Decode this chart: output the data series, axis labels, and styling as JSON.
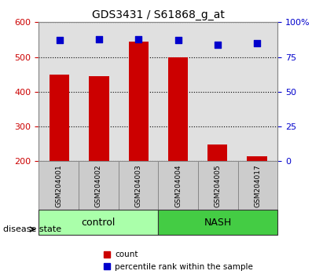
{
  "title": "GDS3431 / S61868_g_at",
  "samples": [
    "GSM204001",
    "GSM204002",
    "GSM204003",
    "GSM204004",
    "GSM204005",
    "GSM204017"
  ],
  "counts": [
    450,
    445,
    545,
    500,
    248,
    215
  ],
  "percentile_ranks": [
    87,
    88,
    88,
    87,
    84,
    85
  ],
  "ylim_left": [
    200,
    600
  ],
  "ylim_right": [
    0,
    100
  ],
  "yticks_left": [
    200,
    300,
    400,
    500,
    600
  ],
  "yticks_right": [
    0,
    25,
    50,
    75,
    100
  ],
  "bar_color": "#cc0000",
  "scatter_color": "#0000cc",
  "bar_bottom": 200,
  "groups": [
    {
      "label": "control",
      "indices": [
        0,
        1,
        2
      ],
      "color": "#aaffaa"
    },
    {
      "label": "NASH",
      "indices": [
        3,
        4,
        5
      ],
      "color": "#44cc44"
    }
  ],
  "disease_state_label": "disease state",
  "legend_count_label": "count",
  "legend_percentile_label": "percentile rank within the sample",
  "background_color": "#ffffff",
  "plot_bg_color": "#e0e0e0",
  "grid_color": "#000000",
  "tick_label_color_left": "#cc0000",
  "tick_label_color_right": "#0000cc"
}
